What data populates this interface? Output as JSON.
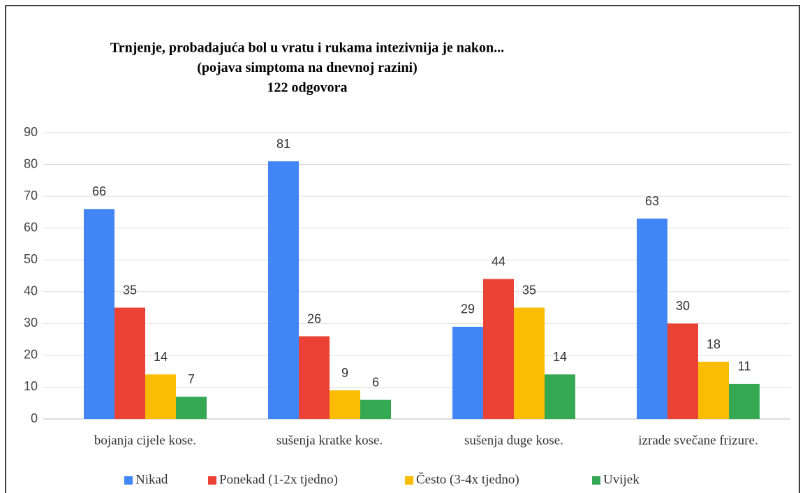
{
  "chart_data": {
    "type": "bar",
    "title": [
      "Trnjenje, probadajuća bol u vratu i rukama intezivnija je nakon...",
      "(pojava simptoma na dnevnoj razini)",
      "122 odgovora"
    ],
    "categories": [
      "bojanja cijele kose.",
      "sušenja kratke kose.",
      "sušenja duge kose.",
      "izrade svečane frizure."
    ],
    "series": [
      {
        "name": "Nikad",
        "color": "#4285f4",
        "values": [
          66,
          81,
          29,
          63
        ]
      },
      {
        "name": "Ponekad (1-2x tjedno)",
        "color": "#ea4335",
        "values": [
          35,
          26,
          44,
          30
        ]
      },
      {
        "name": "Često (3-4x tjedno)",
        "color": "#fbbc04",
        "values": [
          14,
          9,
          35,
          18
        ]
      },
      {
        "name": "Uvijek",
        "color": "#34a853",
        "values": [
          7,
          6,
          14,
          11
        ]
      }
    ],
    "ylim": [
      0,
      90
    ],
    "yticks": [
      0,
      10,
      20,
      30,
      40,
      50,
      60,
      70,
      80,
      90
    ],
    "grid": true,
    "legend": "bottom"
  }
}
